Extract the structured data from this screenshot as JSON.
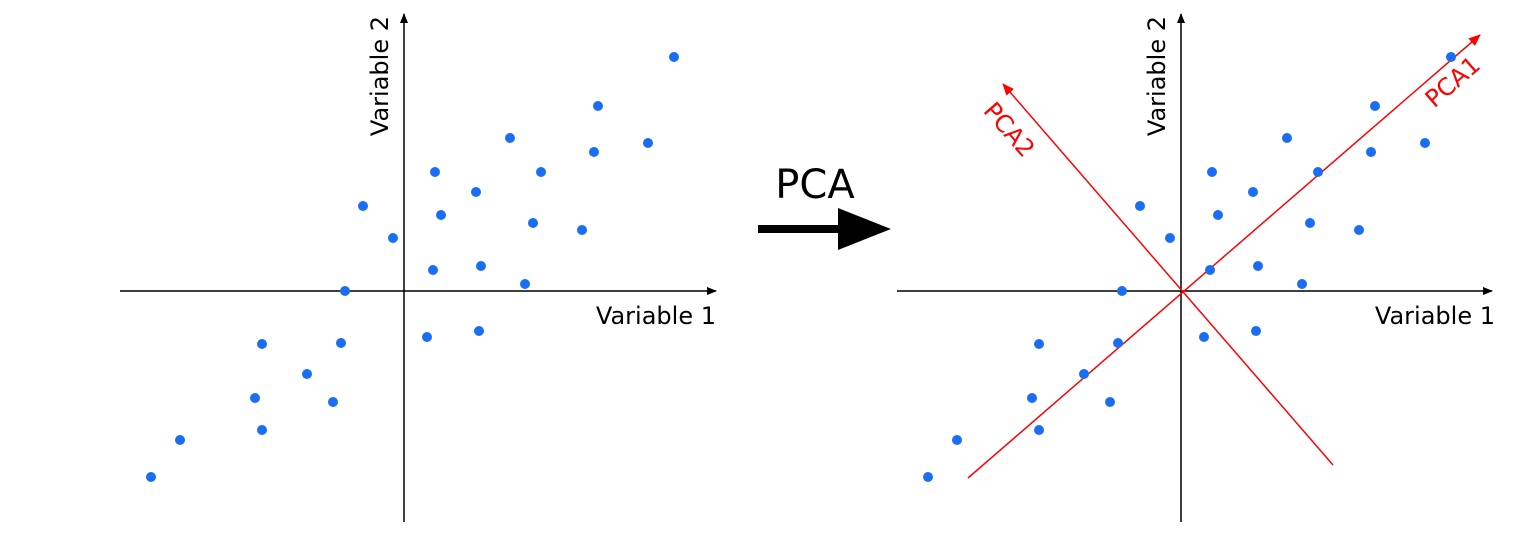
{
  "colors": {
    "point": "#1a6ef5",
    "axis": "#000000",
    "component": "#ff0000",
    "background": "#ffffff"
  },
  "arrow": {
    "label": "PCA"
  },
  "panels": [
    {
      "id": "before-pca",
      "x_axis_label": "Variable 1",
      "y_axis_label": "Variable 2"
    },
    {
      "id": "after-pca",
      "x_axis_label": "Variable 1",
      "y_axis_label": "Variable 2",
      "components": [
        {
          "label": "PCA1"
        },
        {
          "label": "PCA2"
        }
      ]
    }
  ],
  "points": [
    {
      "x": -253,
      "y": -186
    },
    {
      "x": -224,
      "y": -149
    },
    {
      "x": -149,
      "y": -107
    },
    {
      "x": -142,
      "y": -139
    },
    {
      "x": -142,
      "y": -53
    },
    {
      "x": -97,
      "y": -83
    },
    {
      "x": -71,
      "y": -111
    },
    {
      "x": -63,
      "y": -52
    },
    {
      "x": -59,
      "y": 0
    },
    {
      "x": -41,
      "y": 85
    },
    {
      "x": -11,
      "y": 53
    },
    {
      "x": 23,
      "y": -46
    },
    {
      "x": 29,
      "y": 21
    },
    {
      "x": 31,
      "y": 119
    },
    {
      "x": 37,
      "y": 76
    },
    {
      "x": 72,
      "y": 99
    },
    {
      "x": 77,
      "y": 25
    },
    {
      "x": 75,
      "y": -40
    },
    {
      "x": 106,
      "y": 153
    },
    {
      "x": 121,
      "y": 7
    },
    {
      "x": 129,
      "y": 68
    },
    {
      "x": 137,
      "y": 119
    },
    {
      "x": 178,
      "y": 61
    },
    {
      "x": 190,
      "y": 139
    },
    {
      "x": 194,
      "y": 185
    },
    {
      "x": 244,
      "y": 148
    },
    {
      "x": 270,
      "y": 234
    }
  ]
}
